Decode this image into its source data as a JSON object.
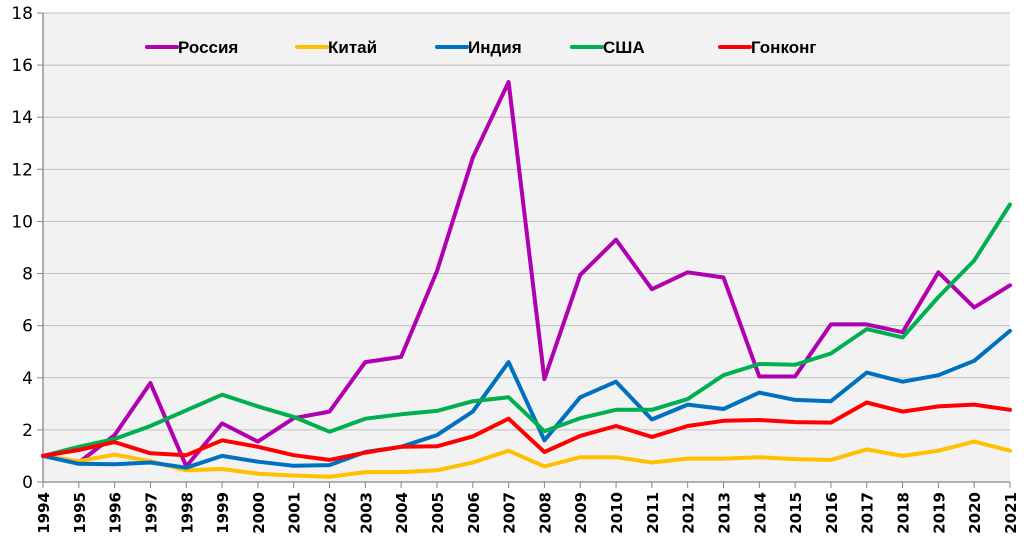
{
  "chart_data": {
    "type": "line",
    "title": "",
    "xlabel": "",
    "ylabel": "",
    "ylim": [
      0,
      18
    ],
    "yticks": [
      "0",
      "2",
      "4",
      "6",
      "8",
      "10",
      "12",
      "14",
      "16",
      "18"
    ],
    "grid": true,
    "legend_position": "top",
    "x": [
      "1994",
      "1995",
      "1996",
      "1997",
      "1998",
      "1999",
      "2000",
      "2001",
      "2002",
      "2003",
      "2004",
      "2005",
      "2006",
      "2007",
      "2008",
      "2009",
      "2010",
      "2011",
      "2012",
      "2013",
      "2014",
      "2015",
      "2016",
      "2017",
      "2018",
      "2019",
      "2020",
      "2021"
    ],
    "series": [
      {
        "name": "Россия",
        "color": "#b000b0",
        "values": [
          1.0,
          0.75,
          1.8,
          3.8,
          0.6,
          2.25,
          1.55,
          2.45,
          2.7,
          4.6,
          4.8,
          8.1,
          12.45,
          15.35,
          3.95,
          7.95,
          9.3,
          7.4,
          8.05,
          7.85,
          4.05,
          4.05,
          6.05,
          6.05,
          5.75,
          8.05,
          6.7,
          7.55
        ]
      },
      {
        "name": "Китай",
        "color": "#ffc000",
        "values": [
          1.0,
          0.8,
          1.05,
          0.8,
          0.45,
          0.5,
          0.32,
          0.25,
          0.2,
          0.38,
          0.38,
          0.45,
          0.75,
          1.2,
          0.6,
          0.95,
          0.95,
          0.75,
          0.9,
          0.9,
          0.95,
          0.88,
          0.85,
          1.25,
          1.0,
          1.2,
          1.55,
          1.2
        ]
      },
      {
        "name": "Индия",
        "color": "#0070c0",
        "values": [
          1.0,
          0.7,
          0.68,
          0.75,
          0.55,
          1.0,
          0.78,
          0.62,
          0.65,
          1.15,
          1.35,
          1.8,
          2.7,
          4.6,
          1.6,
          3.25,
          3.85,
          2.4,
          2.97,
          2.8,
          3.43,
          3.15,
          3.1,
          4.2,
          3.85,
          4.1,
          4.65,
          5.8
        ]
      },
      {
        "name": "США",
        "color": "#00b050",
        "values": [
          1.0,
          1.35,
          1.65,
          2.15,
          2.75,
          3.35,
          2.9,
          2.5,
          1.93,
          2.43,
          2.6,
          2.73,
          3.1,
          3.25,
          1.95,
          2.45,
          2.77,
          2.77,
          3.18,
          4.1,
          4.53,
          4.5,
          4.93,
          5.87,
          5.55,
          7.1,
          8.5,
          10.65
        ]
      },
      {
        "name": "Гонконг",
        "color": "#ff0000",
        "values": [
          1.0,
          1.23,
          1.53,
          1.1,
          1.03,
          1.6,
          1.35,
          1.03,
          0.85,
          1.13,
          1.35,
          1.37,
          1.75,
          2.43,
          1.15,
          1.77,
          2.15,
          1.73,
          2.15,
          2.35,
          2.38,
          2.3,
          2.28,
          3.05,
          2.7,
          2.9,
          2.97,
          2.77
        ]
      }
    ]
  },
  "colors": {
    "plot_background": "#f2f2f2",
    "gridline": "#bfbfbf",
    "axis": "#868686"
  }
}
